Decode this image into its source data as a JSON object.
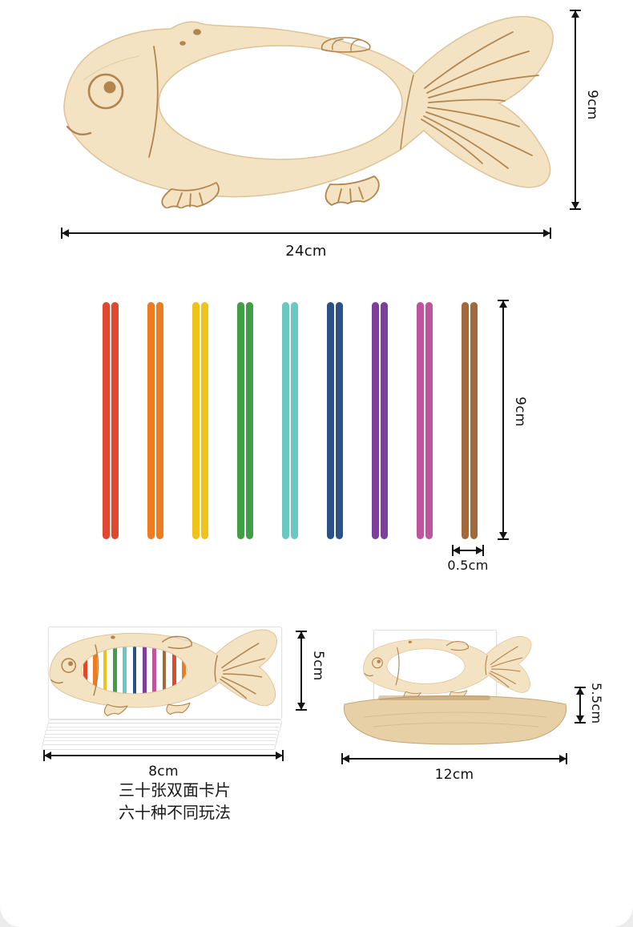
{
  "theme": {
    "wood": "#f3e3c3",
    "wood-dark": "#e7d0a6",
    "wood-edge": "#dcc398",
    "engrave": "#b2854e",
    "arrow": "#151515"
  },
  "fish": {
    "height_label": "9cm",
    "width_label": "24cm"
  },
  "sticks": {
    "height_label": "9cm",
    "thickness_label": "0.5cm",
    "colors": [
      "#e0472d",
      "#ee7c1e",
      "#f1c219",
      "#3f9f45",
      "#6ac8c2",
      "#2b5188",
      "#7c3f9c",
      "#c0539d",
      "#a26a3b"
    ]
  },
  "cards": {
    "height_label": "5cm",
    "width_label": "8cm",
    "caption_line1": "三十张双面卡片",
    "caption_line2": "六十种不同玩法"
  },
  "stand": {
    "height_label": "5.5cm",
    "width_label": "12cm"
  }
}
